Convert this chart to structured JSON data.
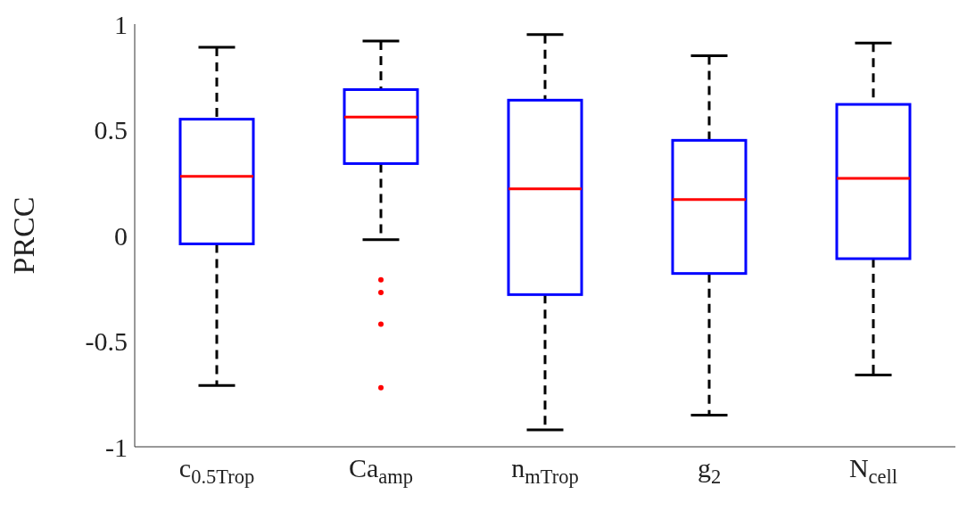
{
  "chart_data": {
    "type": "box",
    "ylabel": "PRCC",
    "categories": [
      "c$_{0.5Trop}$",
      "Ca$_{amp}$",
      "n$_{mTrop}$",
      "g$_{2}$",
      "N$_{cell}$"
    ],
    "ylim": [
      -1,
      1
    ],
    "yticks": [
      -1,
      -0.5,
      0,
      0.5,
      1
    ],
    "grid": false,
    "series": [
      {
        "color": "#0000ff",
        "boxes": [
          {
            "low": -0.71,
            "q1": -0.04,
            "median": 0.28,
            "q3": 0.55,
            "high": 0.89
          },
          {
            "low": -0.02,
            "q1": 0.34,
            "median": 0.56,
            "q3": 0.69,
            "high": 0.92,
            "outliers": [
              -0.21,
              -0.27,
              -0.42,
              -0.72
            ]
          },
          {
            "low": -0.92,
            "q1": -0.28,
            "median": 0.22,
            "q3": 0.64,
            "high": 0.95
          },
          {
            "low": -0.85,
            "q1": -0.18,
            "median": 0.17,
            "q3": 0.45,
            "high": 0.85
          },
          {
            "low": -0.66,
            "q1": -0.11,
            "median": 0.27,
            "q3": 0.62,
            "high": 0.91
          }
        ]
      }
    ]
  }
}
